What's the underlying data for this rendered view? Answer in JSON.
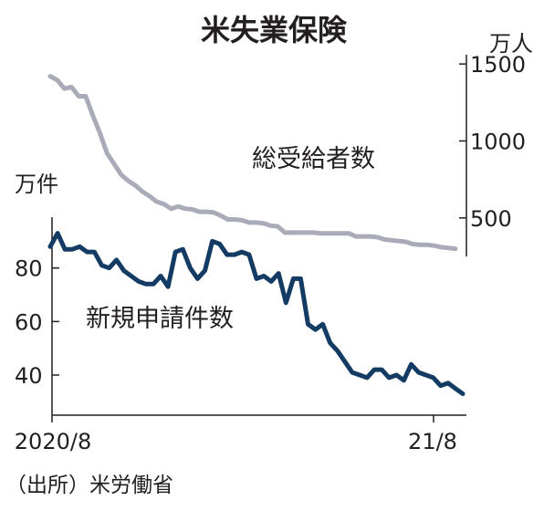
{
  "chart_data": [
    {
      "type": "line",
      "title": "米失業保険",
      "x_start_label": "2020/8",
      "x_end_label": "21/8",
      "source": "（出所）米労働省",
      "unit_right": "万人",
      "unit_left": "万件",
      "series": [
        {
          "name": "総受給者数",
          "axis": "right",
          "ylim": [
            250,
            1560
          ],
          "yticks": [
            500,
            1000,
            1500
          ],
          "color": "#a9abb9",
          "values": [
            1420,
            1395,
            1340,
            1350,
            1290,
            1290,
            1165,
            1050,
            920,
            850,
            780,
            740,
            710,
            670,
            640,
            605,
            590,
            560,
            575,
            560,
            555,
            540,
            540,
            535,
            515,
            490,
            490,
            485,
            470,
            470,
            465,
            450,
            445,
            405,
            405,
            405,
            405,
            405,
            400,
            400,
            400,
            400,
            400,
            380,
            380,
            380,
            375,
            360,
            355,
            350,
            345,
            330,
            325,
            325,
            320,
            310,
            305,
            300
          ]
        },
        {
          "name": "新規申請件数",
          "axis": "left",
          "ylim": [
            25,
            99
          ],
          "yticks": [
            40,
            60,
            80
          ],
          "color": "#143b63",
          "values": [
            88,
            93,
            87,
            87,
            88,
            86,
            86,
            81,
            80,
            83,
            79,
            77,
            75,
            74,
            74,
            77,
            73,
            86,
            87,
            80,
            76,
            79,
            90,
            89,
            85,
            85,
            86,
            85,
            76,
            77,
            75,
            78,
            67,
            76,
            76,
            59,
            57,
            59,
            52,
            49,
            45,
            41,
            40,
            39,
            42,
            42,
            39,
            40,
            38,
            44,
            41,
            40,
            39,
            36,
            37,
            35,
            33
          ]
        }
      ]
    }
  ]
}
